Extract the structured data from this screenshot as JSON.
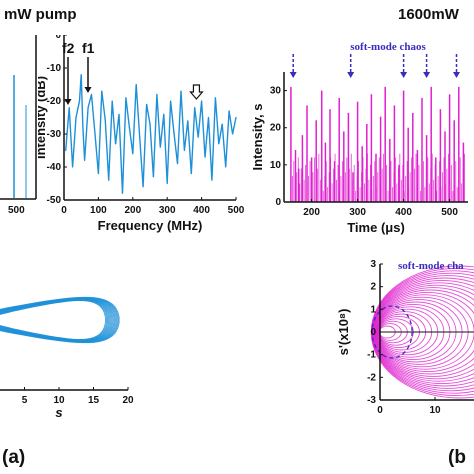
{
  "headers": {
    "left": "mW pump",
    "right": "1600mW"
  },
  "panels": {
    "a": "(a)",
    "b": "(b"
  },
  "colors": {
    "blue": "#1e90d8",
    "magenta": "#e020d0",
    "annotation": "#3a2cc0"
  },
  "chart_data": [
    {
      "id": "freq-spectrum",
      "type": "line",
      "xlabel": "Frequency (MHz)",
      "ylabel": "Intensity (dB)",
      "xlim": [
        0,
        500
      ],
      "ylim": [
        -50,
        0
      ],
      "xticks": [
        0,
        100,
        200,
        300,
        400,
        500
      ],
      "yticks": [
        0,
        -10,
        -20,
        -30,
        -40,
        -50
      ],
      "annotations": [
        "f2",
        "f1"
      ],
      "arrow_at_mhz": 385,
      "series": [
        {
          "color": "#1e90d8",
          "x": [
            5,
            15,
            25,
            35,
            45,
            50,
            55,
            60,
            70,
            80,
            90,
            100,
            110,
            120,
            130,
            140,
            150,
            160,
            170,
            180,
            190,
            200,
            210,
            220,
            230,
            240,
            250,
            260,
            270,
            280,
            290,
            300,
            310,
            320,
            330,
            340,
            350,
            360,
            370,
            380,
            390,
            400,
            410,
            420,
            430,
            440,
            450,
            460,
            470,
            480,
            490,
            500
          ],
          "y": [
            -35,
            -22,
            -40,
            -25,
            -20,
            -12,
            -28,
            -38,
            -22,
            -18,
            -30,
            -42,
            -17,
            -26,
            -44,
            -20,
            -33,
            -24,
            -48,
            -19,
            -28,
            -36,
            -15,
            -31,
            -46,
            -21,
            -27,
            -43,
            -18,
            -34,
            -24,
            -45,
            -20,
            -30,
            -39,
            -17,
            -35,
            -26,
            -42,
            -22,
            -31,
            -20,
            -37,
            -25,
            -44,
            -19,
            -33,
            -27,
            -40,
            -23,
            -30,
            -25
          ]
        }
      ]
    },
    {
      "id": "time-series",
      "type": "bar",
      "xlabel": "Time (μs)",
      "ylabel": "Intensity, s",
      "xlim": [
        140,
        540
      ],
      "ylim": [
        0,
        35
      ],
      "xticks": [
        200,
        300,
        400,
        500
      ],
      "yticks": [
        0,
        10,
        20,
        30
      ],
      "annotations": [
        "soft-mode chaos"
      ],
      "annotation_arrows_at_us": [
        160,
        285,
        400,
        450,
        515
      ],
      "series": [
        {
          "color": "#e020d0",
          "x": [
            155,
            165,
            172,
            180,
            190,
            200,
            210,
            222,
            230,
            240,
            250,
            260,
            270,
            280,
            290,
            300,
            310,
            320,
            330,
            340,
            350,
            360,
            370,
            380,
            390,
            400,
            410,
            420,
            430,
            440,
            450,
            460,
            470,
            480,
            490,
            500,
            510,
            520,
            530
          ],
          "y": [
            31,
            14,
            9,
            18,
            26,
            12,
            22,
            30,
            16,
            25,
            11,
            28,
            19,
            24,
            8,
            27,
            15,
            21,
            29,
            13,
            23,
            31,
            17,
            26,
            10,
            30,
            20,
            24,
            14,
            28,
            18,
            31,
            12,
            25,
            19,
            29,
            22,
            31,
            16
          ]
        }
      ]
    },
    {
      "id": "phase-portrait-a",
      "type": "line",
      "xlabel": "s",
      "ylabel": "",
      "xlim": [
        0,
        20
      ],
      "xticks": [
        5,
        10,
        15,
        20
      ]
    },
    {
      "id": "phase-portrait-b",
      "type": "scatter",
      "xlabel": "",
      "ylabel": "s'(x10⁸)",
      "xlim": [
        0,
        20
      ],
      "ylim": [
        -3,
        3
      ],
      "xticks": [
        0,
        10
      ],
      "yticks": [
        3,
        2,
        1,
        0,
        -1,
        -2,
        -3
      ],
      "annotations": [
        "soft-mode cha"
      ]
    }
  ]
}
